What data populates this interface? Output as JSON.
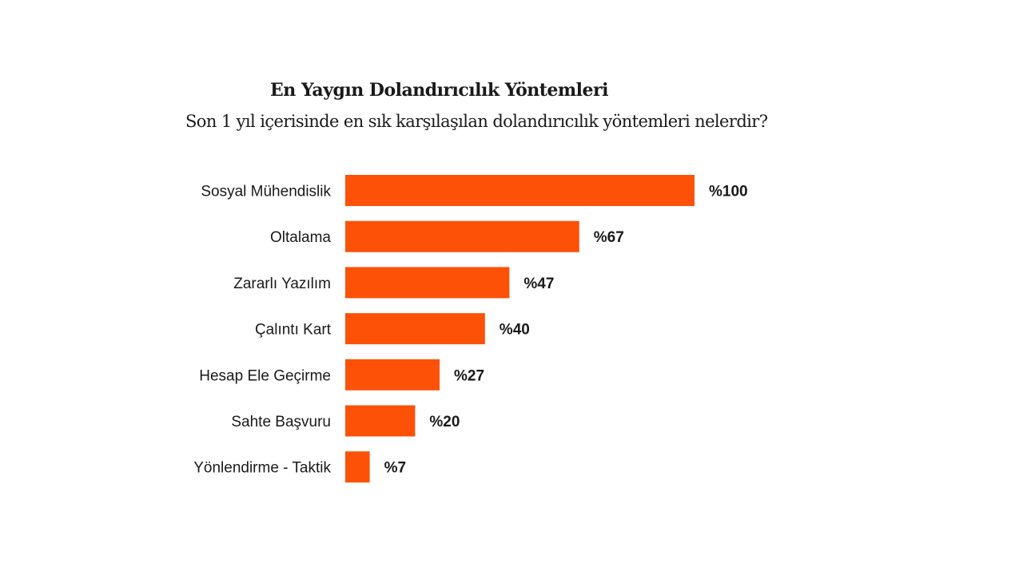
{
  "chart_data": {
    "type": "bar",
    "orientation": "horizontal",
    "title": "En Yaygın Dolandırıcılık Yöntemleri",
    "subtitle": "Son 1 yıl içerisinde en sık karşılaşılan dolandırıcılık yöntemleri nelerdir?",
    "categories": [
      "Sosyal Mühendislik",
      "Oltalama",
      "Zararlı Yazılım",
      "Çalıntı Kart",
      "Hesap Ele Geçirme",
      "Sahte Başvuru",
      "Yönlendirme - Taktik"
    ],
    "values": [
      100,
      67,
      47,
      40,
      27,
      20,
      7
    ],
    "value_labels": [
      "%100",
      "%67",
      "%47",
      "%40",
      "%27",
      "%20",
      "%7"
    ],
    "xlim": [
      0,
      100
    ],
    "grid": false,
    "bar_color": "#FD5108"
  }
}
